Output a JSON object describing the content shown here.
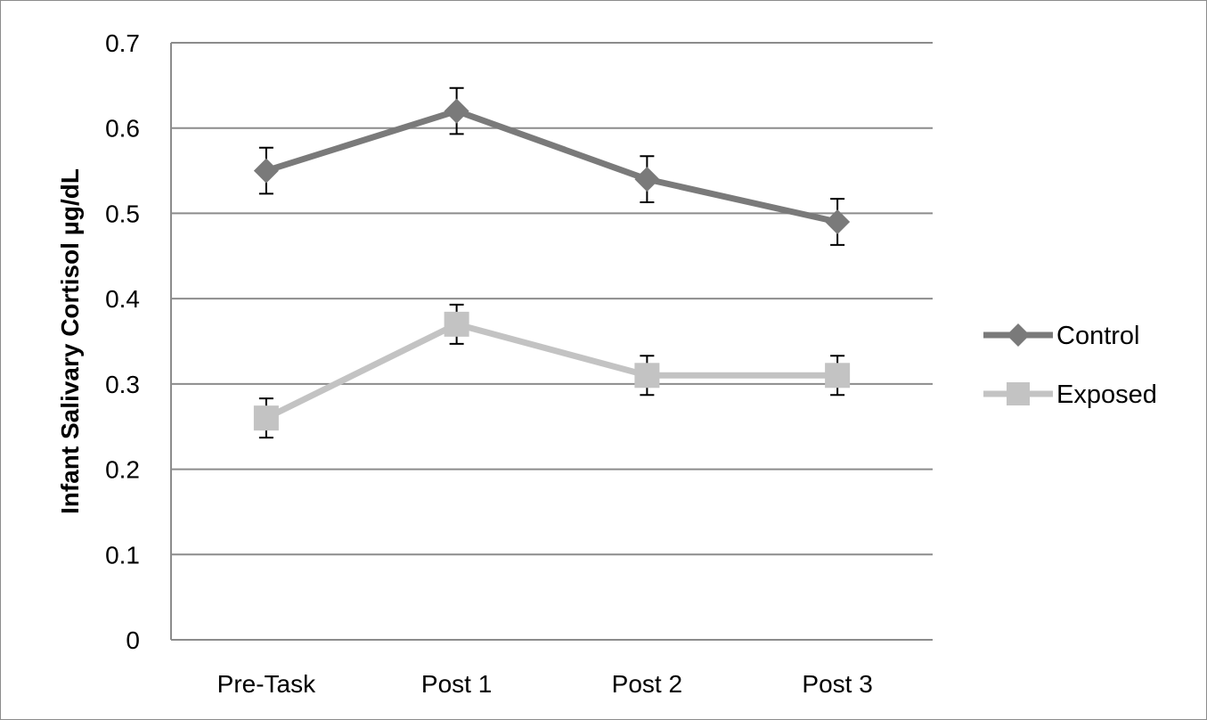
{
  "chart_data": {
    "type": "line",
    "categories": [
      "Pre-Task",
      "Post 1",
      "Post 2",
      "Post 3"
    ],
    "ylabel": "Infant Salivary Cortisol µg/dL",
    "xlabel": "",
    "ylim": [
      0,
      0.7
    ],
    "yticks": [
      0,
      0.1,
      0.2,
      0.3,
      0.4,
      0.5,
      0.6,
      0.7
    ],
    "ytick_labels": [
      "0",
      "0.1",
      "0.2",
      "0.3",
      "0.4",
      "0.5",
      "0.6",
      "0.7"
    ],
    "grid": true,
    "legend_position": "right",
    "series": [
      {
        "name": "Control",
        "values": [
          0.55,
          0.62,
          0.54,
          0.49
        ],
        "error": [
          0.027,
          0.027,
          0.027,
          0.027
        ],
        "color": "#7a7a7a",
        "marker": "diamond"
      },
      {
        "name": "Exposed",
        "values": [
          0.26,
          0.37,
          0.31,
          0.31
        ],
        "error": [
          0.023,
          0.023,
          0.023,
          0.023
        ],
        "color": "#c3c3c3",
        "marker": "square"
      }
    ]
  }
}
